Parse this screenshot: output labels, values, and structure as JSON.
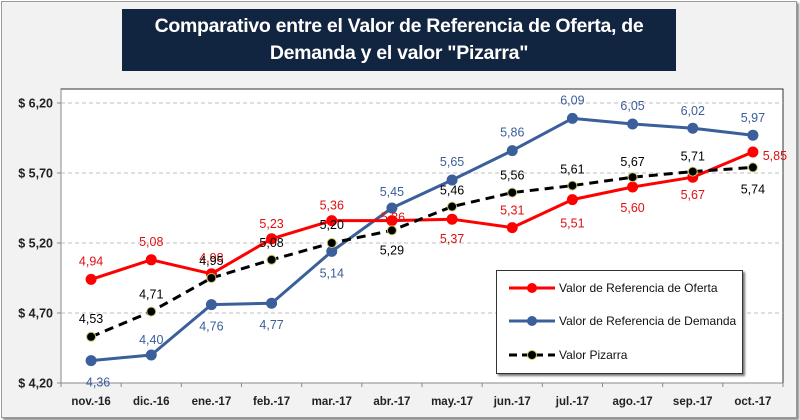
{
  "chart_data": {
    "type": "line",
    "title": "Comparativo entre el Valor de Referencia de Oferta, de\nDemanda y el valor \"Pizarra\"",
    "xlabel": "",
    "ylabel": "",
    "categories": [
      "nov.-16",
      "dic.-16",
      "ene.-17",
      "feb.-17",
      "mar.-17",
      "abr.-17",
      "may.-17",
      "jun.-17",
      "jul.-17",
      "ago.-17",
      "sep.-17",
      "oct.-17"
    ],
    "ylim": [
      4.2,
      6.2
    ],
    "yticks": [
      4.2,
      4.7,
      5.2,
      5.7,
      6.2
    ],
    "ytick_labels": [
      "$ 4,20",
      "$ 4,70",
      "$ 5,20",
      "$ 5,70",
      "$ 6,20"
    ],
    "grid": "horizontal-dashed",
    "legend_position": "bottom-right",
    "series": [
      {
        "name": "Valor de Referencia de Oferta",
        "color": "#ff0000",
        "style": "solid",
        "values": [
          4.94,
          5.08,
          4.98,
          5.23,
          5.36,
          5.36,
          5.37,
          5.31,
          5.51,
          5.6,
          5.67,
          5.85
        ],
        "labels": [
          "4,94",
          "5,08",
          "4,98",
          "5,23",
          "5,36",
          "5,36",
          "5,37",
          "5,31",
          "5,51",
          "5,60",
          "5,67",
          "5,85"
        ]
      },
      {
        "name": "Valor de Referencia de Demanda",
        "color": "#3a5f9a",
        "style": "solid",
        "values": [
          4.36,
          4.4,
          4.76,
          4.77,
          5.14,
          5.45,
          5.65,
          5.86,
          6.09,
          6.05,
          6.02,
          5.97
        ],
        "labels": [
          "4,36",
          "4,40",
          "4,76",
          "4,77",
          "5,14",
          "5,45",
          "5,65",
          "5,86",
          "6,09",
          "6,05",
          "6,02",
          "5,97"
        ]
      },
      {
        "name": "Valor Pizarra",
        "color": "#000000",
        "style": "dashed",
        "values": [
          4.53,
          4.71,
          4.95,
          5.08,
          5.2,
          5.29,
          5.46,
          5.56,
          5.61,
          5.67,
          5.71,
          5.74
        ],
        "labels": [
          "4,53",
          "4,71",
          "4,95",
          "5,08",
          "5,20",
          "5,29",
          "5,46",
          "5,56",
          "5,61",
          "5,67",
          "5,71",
          "5,74"
        ]
      }
    ]
  },
  "colors": {
    "title_background": "#112440",
    "title_text": "#ffffff",
    "panel_background": "#f2f2f2",
    "plot_background": "#ffffff",
    "pizarra_marker_edge": "#c8c86a"
  }
}
